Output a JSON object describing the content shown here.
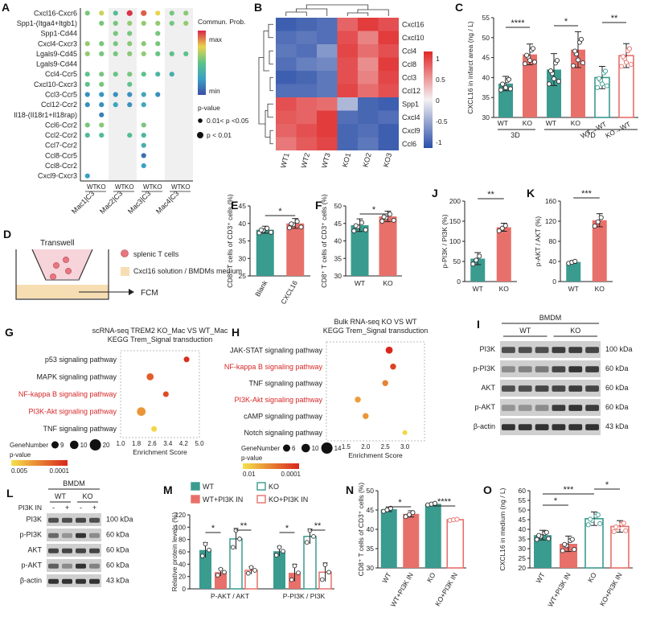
{
  "colors": {
    "wt": "#3a9b8f",
    "ko": "#e8706a",
    "hmap_hi": "#e02828",
    "hmap_lo": "#2a4fa8",
    "path_red": "#d62728"
  },
  "panel_labels": [
    "A",
    "B",
    "C",
    "D",
    "E",
    "F",
    "G",
    "H",
    "I",
    "J",
    "K",
    "L",
    "M",
    "N",
    "O"
  ],
  "chart_data": [
    {
      "id": "A",
      "type": "scatter",
      "title": "Ligand-receptor communication probability",
      "rows": [
        "Cxcl16-Cxcr6",
        "Spp1-(Itga4+Itgb1)",
        "Spp1-Cd44",
        "Cxcl4-Cxcr3",
        "Lgals9-Cd45",
        "Lgals9-Cd44",
        "Ccl4-Ccr5",
        "Cxcl10-Cxcr3",
        "Ccl3-Ccr5",
        "Ccl12-Ccr2",
        "Il18-(Il18r1+Il18rap)",
        "Ccl6-Ccr2",
        "Ccl2-Ccr2",
        "Ccl7-Ccr2",
        "Ccl8-Ccr5",
        "Ccl8-Ccr2",
        "Cxcl9-Cxcr3"
      ],
      "groups": [
        "Mac1|C3",
        "Mac2|C3",
        "Mac3|C3",
        "Mac4|C3"
      ],
      "conditions": [
        "WT",
        "KO"
      ],
      "legend": {
        "title": "Commun. Prob.",
        "max": "max",
        "min": "min",
        "pvalue_title": "p-value",
        "pvalue_items": [
          "0.01< p <0.05",
          "p < 0.01"
        ]
      },
      "points": [
        [
          0,
          0,
          0.55
        ],
        [
          0,
          1,
          0.7
        ],
        [
          0,
          2,
          0.45
        ],
        [
          0,
          3,
          0.98
        ],
        [
          0,
          4,
          0.92
        ],
        [
          0,
          5,
          0.75
        ],
        [
          0,
          6,
          0.55
        ],
        [
          0,
          7,
          0.58
        ],
        [
          1,
          1,
          0.55
        ],
        [
          1,
          2,
          0.55
        ],
        [
          1,
          3,
          0.6
        ],
        [
          1,
          4,
          0.6
        ],
        [
          1,
          5,
          0.6
        ],
        [
          1,
          6,
          0.55
        ],
        [
          1,
          7,
          0.6
        ],
        [
          2,
          2,
          0.55
        ],
        [
          2,
          3,
          0.55
        ],
        [
          2,
          5,
          0.55
        ],
        [
          3,
          0,
          0.6
        ],
        [
          3,
          1,
          0.55
        ],
        [
          3,
          2,
          0.55
        ],
        [
          3,
          3,
          0.58
        ],
        [
          3,
          4,
          0.58
        ],
        [
          3,
          5,
          0.55
        ],
        [
          4,
          0,
          0.6
        ],
        [
          4,
          1,
          0.55
        ],
        [
          4,
          2,
          0.55
        ],
        [
          4,
          3,
          0.58
        ],
        [
          4,
          4,
          0.6
        ],
        [
          4,
          5,
          0.52
        ],
        [
          4,
          6,
          0.5
        ],
        [
          4,
          7,
          0.5
        ],
        [
          6,
          0,
          0.5
        ],
        [
          6,
          1,
          0.55
        ],
        [
          6,
          2,
          0.52
        ],
        [
          6,
          3,
          0.55
        ],
        [
          6,
          4,
          0.5
        ],
        [
          6,
          5,
          0.4
        ],
        [
          6,
          6,
          0.35
        ],
        [
          7,
          0,
          0.5
        ],
        [
          7,
          1,
          0.55
        ],
        [
          7,
          3,
          0.5
        ],
        [
          8,
          0,
          0.2
        ],
        [
          8,
          1,
          0.22
        ],
        [
          8,
          2,
          0.2
        ],
        [
          8,
          3,
          0.2
        ],
        [
          8,
          4,
          0.3
        ],
        [
          8,
          5,
          0.2
        ],
        [
          9,
          0,
          0.2
        ],
        [
          9,
          1,
          0.2
        ],
        [
          9,
          2,
          0.28
        ],
        [
          9,
          3,
          0.2
        ],
        [
          9,
          4,
          0.3
        ],
        [
          10,
          1,
          0.15
        ],
        [
          11,
          0,
          0.55
        ],
        [
          11,
          1,
          0.58
        ],
        [
          11,
          4,
          0.55
        ],
        [
          12,
          0,
          0.45
        ],
        [
          12,
          1,
          0.45
        ],
        [
          12,
          3,
          0.45
        ],
        [
          12,
          4,
          0.4
        ],
        [
          13,
          4,
          0.35
        ],
        [
          14,
          4,
          0.1
        ],
        [
          15,
          4,
          0.25
        ],
        [
          16,
          0,
          0.25
        ]
      ]
    },
    {
      "id": "B",
      "type": "heatmap",
      "rows": [
        "Cxcl16",
        "Cxcl10",
        "Ccl4",
        "Ccl8",
        "Ccl3",
        "Ccl12",
        "Spp1",
        "Cxcl4",
        "Cxcl9",
        "Ccl6"
      ],
      "columns": [
        "WT1",
        "WT2",
        "WT3",
        "KO1",
        "KO2",
        "KO3"
      ],
      "scale_ticks": [
        "1",
        "0.5",
        "0",
        "-0.5",
        "-1"
      ],
      "values": [
        [
          -0.9,
          -0.85,
          -0.8,
          0.7,
          0.9,
          0.8
        ],
        [
          -0.8,
          -0.75,
          -0.8,
          0.8,
          0.55,
          0.9
        ],
        [
          -0.75,
          -0.8,
          -0.55,
          0.85,
          0.65,
          0.8
        ],
        [
          -0.8,
          -0.7,
          -0.65,
          0.8,
          0.5,
          0.9
        ],
        [
          -0.9,
          -0.85,
          -0.75,
          0.8,
          0.55,
          0.85
        ],
        [
          -0.8,
          -0.8,
          -0.75,
          0.85,
          0.65,
          0.8
        ],
        [
          0.8,
          0.7,
          0.65,
          -0.35,
          -0.85,
          -0.9
        ],
        [
          0.75,
          0.7,
          0.9,
          -0.8,
          -0.85,
          -0.8
        ],
        [
          0.7,
          0.8,
          0.9,
          -0.85,
          -0.8,
          -0.9
        ],
        [
          0.6,
          0.75,
          0.85,
          -0.85,
          -0.75,
          -0.9
        ]
      ]
    },
    {
      "id": "C",
      "type": "bar",
      "ylabel": "CXCL16 in infarct area (ng / L)",
      "ylim": [
        30,
        55
      ],
      "yticks": [
        30,
        35,
        40,
        45,
        50,
        55
      ],
      "categories": [
        "WT",
        "KO",
        "WT",
        "KO",
        "WT→WT",
        "KO→WT"
      ],
      "group_labels": [
        "3D",
        "7D"
      ],
      "values": [
        38.5,
        45.8,
        42,
        47,
        40,
        45.5
      ],
      "errors": [
        1.8,
        2.6,
        4,
        4.5,
        2.8,
        3
      ],
      "significance": [
        {
          "pair": [
            0,
            1
          ],
          "label": "****"
        },
        {
          "pair": [
            2,
            3
          ],
          "label": "*"
        },
        {
          "pair": [
            4,
            5
          ],
          "label": "**"
        }
      ]
    },
    {
      "id": "D",
      "type": "diagram",
      "title": "Transwell",
      "legend": [
        "splenic T cells",
        "Cxcl16 solution / BMDMs medium"
      ],
      "output_label": "FCM"
    },
    {
      "id": "E",
      "type": "bar",
      "ylabel": "CD8⁺ T cells of CD3⁺ cells (%)",
      "ylim": [
        25,
        45
      ],
      "yticks": [
        25,
        30,
        35,
        40,
        45
      ],
      "categories": [
        "Blank",
        "CXCL16"
      ],
      "values": [
        38.2,
        40
      ],
      "errors": [
        1,
        1.4
      ],
      "significance": [
        {
          "pair": [
            0,
            1
          ],
          "label": "*"
        }
      ]
    },
    {
      "id": "F",
      "type": "bar",
      "ylabel": "CD8⁺ T cells of CD3⁺ cells (%)",
      "ylim": [
        30,
        50
      ],
      "yticks": [
        30,
        35,
        40,
        45,
        50
      ],
      "categories": [
        "WT",
        "KO"
      ],
      "values": [
        44.5,
        47
      ],
      "errors": [
        1.8,
        1.5
      ],
      "significance": [
        {
          "pair": [
            0,
            1
          ],
          "label": "*"
        }
      ]
    },
    {
      "id": "G",
      "type": "scatter",
      "title": [
        "scRNA-seq TREM2 KO_Mac VS WT_Mac",
        "KEGG Trem_Signal transduction"
      ],
      "xlabel": "Enrichment Score",
      "xlim": [
        1.0,
        5.0
      ],
      "xticks": [
        "1.0",
        "1.8",
        "2.6",
        "3.4",
        "4.2",
        "5.0"
      ],
      "categories": [
        "p53 signaling pathway",
        "MAPK signaling pathway",
        "NF-kappa B signaling pathway",
        "PI3K-Akt signaling pathway",
        "TNF signaling pathway"
      ],
      "highlight": [
        false,
        false,
        true,
        true,
        false
      ],
      "values": [
        4.35,
        2.5,
        3.3,
        2.05,
        2.7
      ],
      "size": [
        9,
        14,
        9,
        20,
        9
      ],
      "color": [
        0.95,
        0.7,
        0.8,
        0.4,
        0.05
      ],
      "legend": {
        "size_title": "GeneNumber",
        "size_items": [
          "9",
          "10",
          "20"
        ],
        "color_title": "p-value",
        "color_min": "0.005",
        "color_max": "0.0001"
      }
    },
    {
      "id": "H",
      "type": "scatter",
      "title": [
        "Bulk RNA-seq KO VS WT",
        "KEGG Trem_Signal transduction"
      ],
      "xlabel": "Enrichment Score",
      "xlim": [
        1.0,
        3.5
      ],
      "xticks": [
        "1.5",
        "2.0",
        "2.5",
        "3.0"
      ],
      "categories": [
        "JAK-STAT signaling pathway",
        "NF-kappa B signaling pathway",
        "TNF signaling pathway",
        "PI3K-Akt signaling pathway",
        "cAMP signaling pathway",
        "Notch signaling pathway"
      ],
      "highlight": [
        false,
        true,
        false,
        true,
        false,
        false
      ],
      "values": [
        2.6,
        2.7,
        2.5,
        1.8,
        2.0,
        3.0
      ],
      "size": [
        14,
        10,
        10,
        10,
        10,
        6
      ],
      "color": [
        1.0,
        0.85,
        0.5,
        0.35,
        0.4,
        0.05
      ],
      "legend": {
        "size_title": "GeneNumber",
        "size_items": [
          "6",
          "10",
          "14"
        ],
        "color_title": "p-value",
        "color_min": "0.01",
        "color_max": "0.0001"
      }
    },
    {
      "id": "I",
      "type": "blot",
      "title": "BMDM",
      "groups": [
        "WT",
        "KO"
      ],
      "rows": [
        {
          "name": "PI3K",
          "kda": "100 kDa"
        },
        {
          "name": "p-PI3K",
          "kda": "60 kDa"
        },
        {
          "name": "AKT",
          "kda": "60 kDa"
        },
        {
          "name": "p-AKT",
          "kda": "60 kDa"
        },
        {
          "name": "β-actin",
          "kda": "43 kDa"
        }
      ]
    },
    {
      "id": "J",
      "type": "bar",
      "ylabel": "p-PI3K / PI3K (%)",
      "ylim": [
        0,
        200
      ],
      "yticks": [
        0,
        50,
        100,
        150,
        200
      ],
      "categories": [
        "WT",
        "KO"
      ],
      "values": [
        57,
        135
      ],
      "errors": [
        15,
        10
      ],
      "significance": [
        {
          "pair": [
            0,
            1
          ],
          "label": "**"
        }
      ]
    },
    {
      "id": "K",
      "type": "bar",
      "ylabel": "p-AKT / AKT (%)",
      "ylim": [
        0,
        160
      ],
      "yticks": [
        0,
        40,
        80,
        120,
        160
      ],
      "categories": [
        "WT",
        "KO"
      ],
      "values": [
        39,
        122
      ],
      "errors": [
        3,
        13
      ],
      "significance": [
        {
          "pair": [
            0,
            1
          ],
          "label": "***"
        }
      ]
    },
    {
      "id": "L",
      "type": "blot",
      "title": "BMDM",
      "groups": [
        "WT",
        "KO"
      ],
      "treatment_label": "PI3K IN",
      "treatment_signs": [
        "-",
        "+",
        "-",
        "+"
      ],
      "rows": [
        {
          "name": "PI3K",
          "kda": "100 kDa"
        },
        {
          "name": "p-PI3K",
          "kda": "60 kDa"
        },
        {
          "name": "AKT",
          "kda": "60 kDa"
        },
        {
          "name": "p-AKT",
          "kda": "60 kDa"
        },
        {
          "name": "β-actin",
          "kda": "43 kDa"
        }
      ]
    },
    {
      "id": "M",
      "type": "bar",
      "ylabel": "Relative protein levels (%)",
      "ylim": [
        0,
        120
      ],
      "yticks": [
        0,
        20,
        40,
        60,
        80,
        100,
        120
      ],
      "categories": [
        "P-AKT / AKT",
        "P-PI3K / PI3K"
      ],
      "series": [
        {
          "name": "WT",
          "values": [
            63,
            61
          ],
          "errors": [
            12,
            8
          ]
        },
        {
          "name": "WT+PI3K IN",
          "values": [
            27,
            26
          ],
          "errors": [
            6,
            14
          ]
        },
        {
          "name": "KO",
          "values": [
            81,
            85
          ],
          "errors": [
            17,
            12
          ]
        },
        {
          "name": "KO+PI3K IN",
          "values": [
            30,
            27
          ],
          "errors": [
            6,
            15
          ]
        }
      ],
      "significance": [
        {
          "pair": [
            0,
            1
          ],
          "group": 0,
          "label": "*"
        },
        {
          "pair": [
            2,
            3
          ],
          "group": 0,
          "label": "**"
        },
        {
          "pair": [
            0,
            1
          ],
          "group": 1,
          "label": "*"
        },
        {
          "pair": [
            2,
            3
          ],
          "group": 1,
          "label": "**"
        }
      ]
    },
    {
      "id": "N",
      "type": "bar",
      "ylabel": "CD8⁺ T cells of CD3⁺ cells (%)",
      "ylim": [
        30,
        50
      ],
      "yticks": [
        30,
        35,
        40,
        45,
        50
      ],
      "categories": [
        "WT",
        "WT+PI3K IN",
        "KO",
        "KO+PI3K IN"
      ],
      "values": [
        45.2,
        44,
        46.6,
        42.5
      ],
      "errors": [
        0.6,
        0.8,
        0.3,
        0.2
      ],
      "significance": [
        {
          "pair": [
            0,
            1
          ],
          "label": "*"
        },
        {
          "pair": [
            2,
            3
          ],
          "label": "****"
        }
      ]
    },
    {
      "id": "O",
      "type": "bar",
      "ylabel": "CXCL16 in medium (ng / L)",
      "ylim": [
        20,
        60
      ],
      "yticks": [
        20,
        25,
        30,
        35,
        40,
        45,
        50,
        55,
        60
      ],
      "categories": [
        "WT",
        "WT+PI3K IN",
        "KO",
        "KO+PI3K IN"
      ],
      "values": [
        37,
        32.5,
        45.5,
        41.5
      ],
      "errors": [
        2.5,
        4,
        3.5,
        3
      ],
      "significance": [
        {
          "pair": [
            0,
            1
          ],
          "label": "*"
        },
        {
          "pair": [
            0,
            2
          ],
          "label": "***"
        },
        {
          "pair": [
            2,
            3
          ],
          "label": "*"
        }
      ]
    }
  ]
}
